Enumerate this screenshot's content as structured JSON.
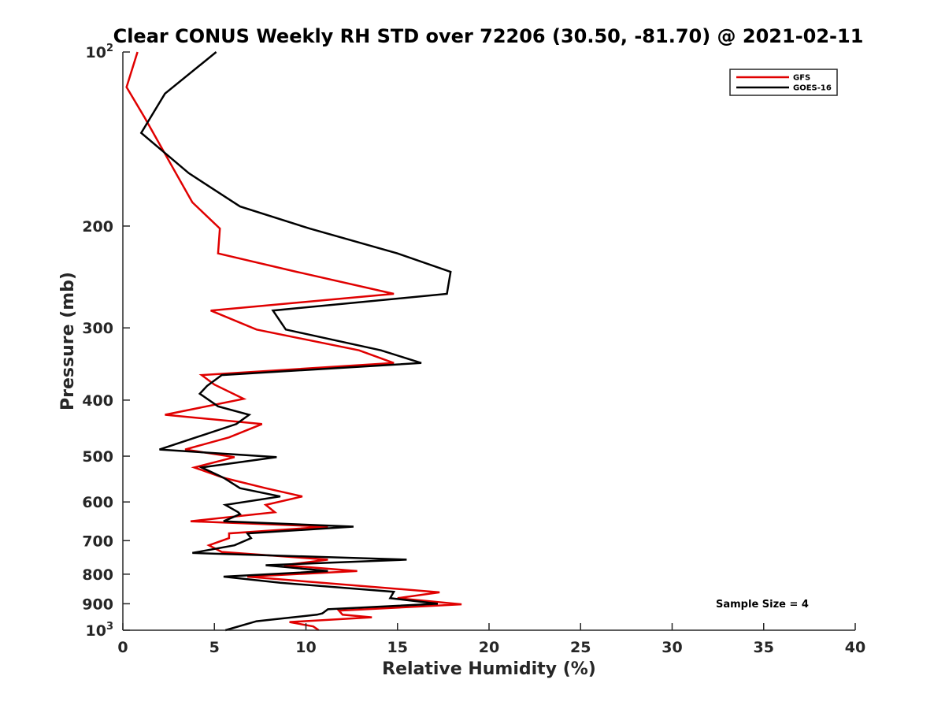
{
  "chart_data": {
    "type": "line",
    "title": "Clear CONUS Weekly RH STD over 72206 (30.50, -81.70) @ 2021-02-11",
    "xlabel": "Relative Humidity (%)",
    "ylabel": "Pressure (mb)",
    "xlim": [
      0,
      40
    ],
    "ylim": [
      100,
      1000
    ],
    "y_scale": "log",
    "y_reversed": true,
    "x_ticks": [
      "0",
      "5",
      "10",
      "15",
      "20",
      "25",
      "30",
      "35",
      "40"
    ],
    "y_ticks": [
      {
        "value": 100,
        "base": "10",
        "sup": "2"
      },
      {
        "value": 200,
        "base": "200",
        "sup": ""
      },
      {
        "value": 300,
        "base": "300",
        "sup": ""
      },
      {
        "value": 400,
        "base": "400",
        "sup": ""
      },
      {
        "value": 500,
        "base": "500",
        "sup": ""
      },
      {
        "value": 600,
        "base": "600",
        "sup": ""
      },
      {
        "value": 700,
        "base": "700",
        "sup": ""
      },
      {
        "value": 800,
        "base": "800",
        "sup": ""
      },
      {
        "value": 900,
        "base": "900",
        "sup": ""
      },
      {
        "value": 1000,
        "base": "10",
        "sup": "3"
      }
    ],
    "grid": false,
    "legend_position": "top-right",
    "annotation": "Sample Size = 4",
    "series": [
      {
        "name": "GFS",
        "color": "#e00000",
        "points": [
          [
            0.8,
            100
          ],
          [
            0.2,
            115
          ],
          [
            1.2,
            130
          ],
          [
            2.8,
            160
          ],
          [
            3.8,
            182
          ],
          [
            5.3,
            202
          ],
          [
            5.2,
            223
          ],
          [
            9.5,
            240
          ],
          [
            14.8,
            262
          ],
          [
            4.8,
            280
          ],
          [
            7.3,
            302
          ],
          [
            12.9,
            328
          ],
          [
            14.8,
            345
          ],
          [
            4.3,
            362
          ],
          [
            5.0,
            376
          ],
          [
            6.6,
            398
          ],
          [
            2.3,
            424
          ],
          [
            7.6,
            440
          ],
          [
            5.8,
            464
          ],
          [
            3.4,
            487
          ],
          [
            6.1,
            502
          ],
          [
            3.9,
            523
          ],
          [
            5.5,
            545
          ],
          [
            7.8,
            568
          ],
          [
            9.8,
            587
          ],
          [
            7.8,
            607
          ],
          [
            8.3,
            625
          ],
          [
            3.7,
            648
          ],
          [
            11.2,
            662
          ],
          [
            5.8,
            680
          ],
          [
            5.8,
            693
          ],
          [
            4.7,
            713
          ],
          [
            5.4,
            732
          ],
          [
            11.2,
            755
          ],
          [
            8.8,
            772
          ],
          [
            12.8,
            790
          ],
          [
            6.8,
            808
          ],
          [
            17.3,
            860
          ],
          [
            15.0,
            880
          ],
          [
            18.5,
            902
          ],
          [
            11.8,
            925
          ],
          [
            12.0,
            940
          ],
          [
            13.6,
            950
          ],
          [
            9.1,
            968
          ],
          [
            10.4,
            985
          ],
          [
            10.7,
            1000
          ]
        ]
      },
      {
        "name": "GOES-16",
        "color": "#000000",
        "points": [
          [
            5.1,
            100
          ],
          [
            2.3,
            118
          ],
          [
            1.0,
            138
          ],
          [
            3.6,
            162
          ],
          [
            6.4,
            185
          ],
          [
            10.2,
            202
          ],
          [
            15.0,
            223
          ],
          [
            17.9,
            240
          ],
          [
            17.7,
            262
          ],
          [
            8.2,
            280
          ],
          [
            8.9,
            302
          ],
          [
            14.1,
            328
          ],
          [
            16.3,
            345
          ],
          [
            5.4,
            362
          ],
          [
            4.6,
            378
          ],
          [
            4.2,
            390
          ],
          [
            5.2,
            410
          ],
          [
            6.9,
            424
          ],
          [
            6.2,
            440
          ],
          [
            2.0,
            487
          ],
          [
            8.4,
            502
          ],
          [
            4.3,
            523
          ],
          [
            5.5,
            545
          ],
          [
            6.4,
            568
          ],
          [
            8.6,
            587
          ],
          [
            5.6,
            607
          ],
          [
            6.3,
            625
          ],
          [
            6.4,
            630
          ],
          [
            5.5,
            648
          ],
          [
            12.6,
            662
          ],
          [
            6.8,
            680
          ],
          [
            7.0,
            693
          ],
          [
            6.1,
            713
          ],
          [
            3.8,
            735
          ],
          [
            15.5,
            755
          ],
          [
            7.8,
            772
          ],
          [
            11.2,
            790
          ],
          [
            5.5,
            808
          ],
          [
            8.6,
            828
          ],
          [
            14.8,
            858
          ],
          [
            14.6,
            880
          ],
          [
            17.2,
            900
          ],
          [
            11.2,
            920
          ],
          [
            10.9,
            935
          ],
          [
            10.6,
            940
          ],
          [
            7.3,
            965
          ],
          [
            5.6,
            1000
          ]
        ]
      }
    ]
  }
}
